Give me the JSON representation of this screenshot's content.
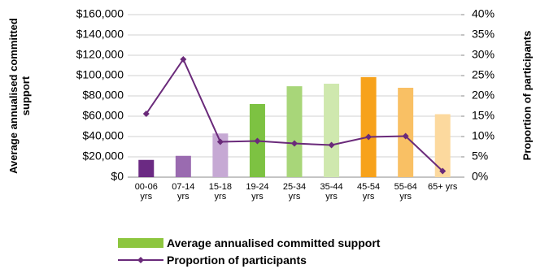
{
  "chart_data": {
    "type": "bar-line",
    "y_label": "Average annualised committed support",
    "y2_label": "Proportion of participants",
    "categories": [
      "00-06 yrs",
      "07-14 yrs",
      "15-18 yrs",
      "19-24 yrs",
      "25-34 yrs",
      "35-44 yrs",
      "45-54 yrs",
      "55-64 yrs",
      "65+ yrs"
    ],
    "series": [
      {
        "name": "Average annualised committed support",
        "type": "bar",
        "color": "#8dc63f",
        "colors": [
          "#6b2a83",
          "#9a6bb0",
          "#c6a9d4",
          "#7dc242",
          "#a8d679",
          "#cfe8ae",
          "#f7a21b",
          "#f9c064",
          "#fcd99e"
        ],
        "values": [
          17000,
          21000,
          43000,
          72000,
          89500,
          92000,
          98500,
          88000,
          62000
        ]
      },
      {
        "name": "Proportion of participants",
        "type": "line",
        "axis": "y2",
        "color": "#6a2a7a",
        "values": [
          15.6,
          29,
          8.7,
          8.9,
          8.3,
          7.9,
          9.9,
          10.1,
          1.5
        ]
      }
    ],
    "ylim": [
      0,
      160000
    ],
    "yticks": [
      {
        "value": 0,
        "label": "$0"
      },
      {
        "value": 20000,
        "label": "$20,000"
      },
      {
        "value": 40000,
        "label": "$40,000"
      },
      {
        "value": 60000,
        "label": "$60,000"
      },
      {
        "value": 80000,
        "label": "$80,000"
      },
      {
        "value": 100000,
        "label": "$100,000"
      },
      {
        "value": 120000,
        "label": "$120,000"
      },
      {
        "value": 140000,
        "label": "$140,000"
      },
      {
        "value": 160000,
        "label": "$160,000"
      }
    ],
    "y2lim": [
      0,
      40
    ],
    "y2ticks": [
      {
        "value": 0,
        "label": "0%"
      },
      {
        "value": 5,
        "label": "5%"
      },
      {
        "value": 10,
        "label": "10%"
      },
      {
        "value": 15,
        "label": "15%"
      },
      {
        "value": 20,
        "label": "20%"
      },
      {
        "value": 25,
        "label": "25%"
      },
      {
        "value": 30,
        "label": "30%"
      },
      {
        "value": 35,
        "label": "35%"
      },
      {
        "value": 40,
        "label": "40%"
      }
    ],
    "grid": true
  }
}
